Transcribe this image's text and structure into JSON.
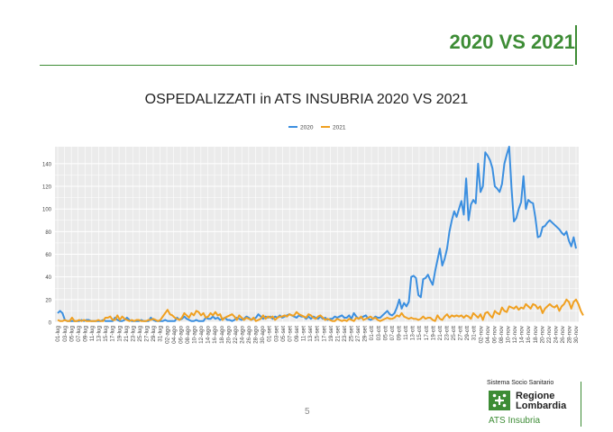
{
  "slide": {
    "title": "2020 VS 2021",
    "page_number": "5"
  },
  "logo": {
    "super_text": "Sistema Socio Sanitario",
    "name_line1": "Regione",
    "name_line2": "Lombardia",
    "subtitle": "ATS Insubria"
  },
  "colors": {
    "accent_green": "#3d8c35",
    "series_2020": "#3b8fe0",
    "series_2021": "#f0a020",
    "panel_bg": "#ebebeb"
  },
  "chart_data": {
    "type": "line",
    "title": "OSPEDALIZZATI in ATS INSUBRIA  2020 VS 2021",
    "xlabel": "",
    "ylabel": "",
    "ylim": [
      0,
      155
    ],
    "yticks": [
      0,
      20,
      40,
      60,
      80,
      100,
      120,
      140
    ],
    "grid": true,
    "legend_position": "top-center",
    "xtick_labels": [
      "01-lug",
      "03-lug",
      "05-lug",
      "07-lug",
      "09-lug",
      "11-lug",
      "13-lug",
      "15-lug",
      "17-lug",
      "19-lug",
      "21-lug",
      "23-lug",
      "25-lug",
      "27-lug",
      "29-lug",
      "31-lug",
      "02-ago",
      "04-ago",
      "06-ago",
      "08-ago",
      "10-ago",
      "12-ago",
      "14-ago",
      "16-ago",
      "18-ago",
      "20-ago",
      "22-ago",
      "24-ago",
      "26-ago",
      "28-ago",
      "30-ago",
      "01-set",
      "03-set",
      "05-set",
      "07-set",
      "09-set",
      "11-set",
      "13-set",
      "15-set",
      "17-set",
      "19-set",
      "21-set",
      "23-set",
      "25-set",
      "27-set",
      "29-set",
      "01-ott",
      "03-ott",
      "05-ott",
      "07-ott",
      "09-ott",
      "11-ott",
      "13-ott",
      "15-ott",
      "17-ott",
      "19-ott",
      "21-ott",
      "23-ott",
      "25-ott",
      "27-ott",
      "29-ott",
      "31-ott",
      "02-nov",
      "04-nov",
      "06-nov",
      "08-nov",
      "10-nov",
      "12-nov",
      "14-nov",
      "16-nov",
      "18-nov",
      "20-nov",
      "22-nov",
      "24-nov",
      "26-nov",
      "28-nov",
      "30-nov"
    ],
    "x_start": "01-lug",
    "series": [
      {
        "name": "2020",
        "values": [
          8,
          10,
          8,
          2,
          1,
          1,
          1,
          1,
          1,
          1,
          2,
          1,
          2,
          2,
          1,
          1,
          1,
          1,
          1,
          2,
          1,
          1,
          1,
          1,
          4,
          2,
          1,
          1,
          2,
          4,
          2,
          1,
          1,
          1,
          1,
          2,
          1,
          1,
          1,
          4,
          2,
          1,
          1,
          1,
          1,
          2,
          1,
          1,
          1,
          1,
          4,
          2,
          3,
          5,
          3,
          2,
          1,
          1,
          2,
          1,
          1,
          1,
          4,
          3,
          3,
          5,
          3,
          4,
          2,
          3,
          4,
          2,
          2,
          1,
          2,
          4,
          3,
          2,
          3,
          5,
          4,
          2,
          3,
          4,
          7,
          5,
          3,
          5,
          4,
          5,
          3,
          5,
          4,
          6,
          4,
          5,
          6,
          7,
          6,
          5,
          4,
          6,
          5,
          5,
          3,
          5,
          3,
          5,
          4,
          3,
          5,
          3,
          4,
          2,
          3,
          3,
          5,
          4,
          5,
          6,
          4,
          4,
          6,
          3,
          8,
          5,
          3,
          4,
          5,
          6,
          3,
          2,
          3,
          5,
          4,
          4,
          6,
          8,
          10,
          7,
          6,
          8,
          13,
          20,
          12,
          17,
          14,
          18,
          40,
          41,
          39,
          24,
          22,
          38,
          39,
          42,
          37,
          33,
          45,
          55,
          65,
          50,
          56,
          65,
          80,
          90,
          98,
          93,
          100,
          107,
          95,
          127,
          90,
          104,
          108,
          105,
          140,
          115,
          120,
          150,
          147,
          143,
          136,
          120,
          118,
          115,
          122,
          140,
          148,
          155,
          118,
          89,
          92,
          100,
          106,
          129,
          100,
          108,
          106,
          105,
          92,
          75,
          76,
          84,
          85,
          88,
          90,
          88,
          86,
          84,
          82,
          79,
          77,
          80,
          72,
          67,
          75,
          65
        ]
      },
      {
        "name": "2021",
        "values": [
          2,
          1,
          1,
          2,
          1,
          1,
          4,
          1,
          1,
          2,
          1,
          2,
          1,
          1,
          1,
          1,
          1,
          2,
          1,
          1,
          4,
          4,
          5,
          2,
          2,
          6,
          2,
          5,
          3,
          2,
          1,
          2,
          1,
          2,
          2,
          1,
          1,
          1,
          2,
          2,
          3,
          2,
          1,
          2,
          5,
          8,
          11,
          7,
          6,
          4,
          3,
          2,
          4,
          8,
          6,
          4,
          8,
          6,
          10,
          9,
          6,
          8,
          4,
          5,
          8,
          6,
          9,
          6,
          7,
          2,
          4,
          5,
          6,
          7,
          5,
          2,
          6,
          4,
          2,
          4,
          3,
          2,
          4,
          1,
          2,
          3,
          6,
          3,
          5,
          4,
          5,
          2,
          4,
          5,
          5,
          6,
          5,
          7,
          6,
          6,
          9,
          7,
          6,
          5,
          4,
          7,
          6,
          4,
          3,
          5,
          6,
          4,
          2,
          3,
          2,
          1,
          1,
          3,
          2,
          1,
          2,
          1,
          3,
          2,
          1,
          4,
          3,
          5,
          2,
          3,
          4,
          5,
          3,
          4,
          2,
          1,
          2,
          3,
          4,
          3,
          3,
          4,
          6,
          5,
          8,
          5,
          4,
          3,
          4,
          3,
          3,
          2,
          3,
          5,
          3,
          4,
          4,
          2,
          1,
          6,
          3,
          2,
          5,
          7,
          4,
          6,
          5,
          6,
          5,
          6,
          4,
          6,
          5,
          3,
          8,
          6,
          4,
          7,
          2,
          8,
          9,
          6,
          4,
          10,
          8,
          7,
          13,
          10,
          9,
          14,
          13,
          12,
          14,
          11,
          13,
          12,
          16,
          14,
          12,
          16,
          15,
          12,
          14,
          8,
          12,
          14,
          16,
          14,
          13,
          15,
          10,
          14,
          16,
          20,
          18,
          12,
          18,
          20,
          16,
          10,
          6
        ]
      }
    ]
  }
}
